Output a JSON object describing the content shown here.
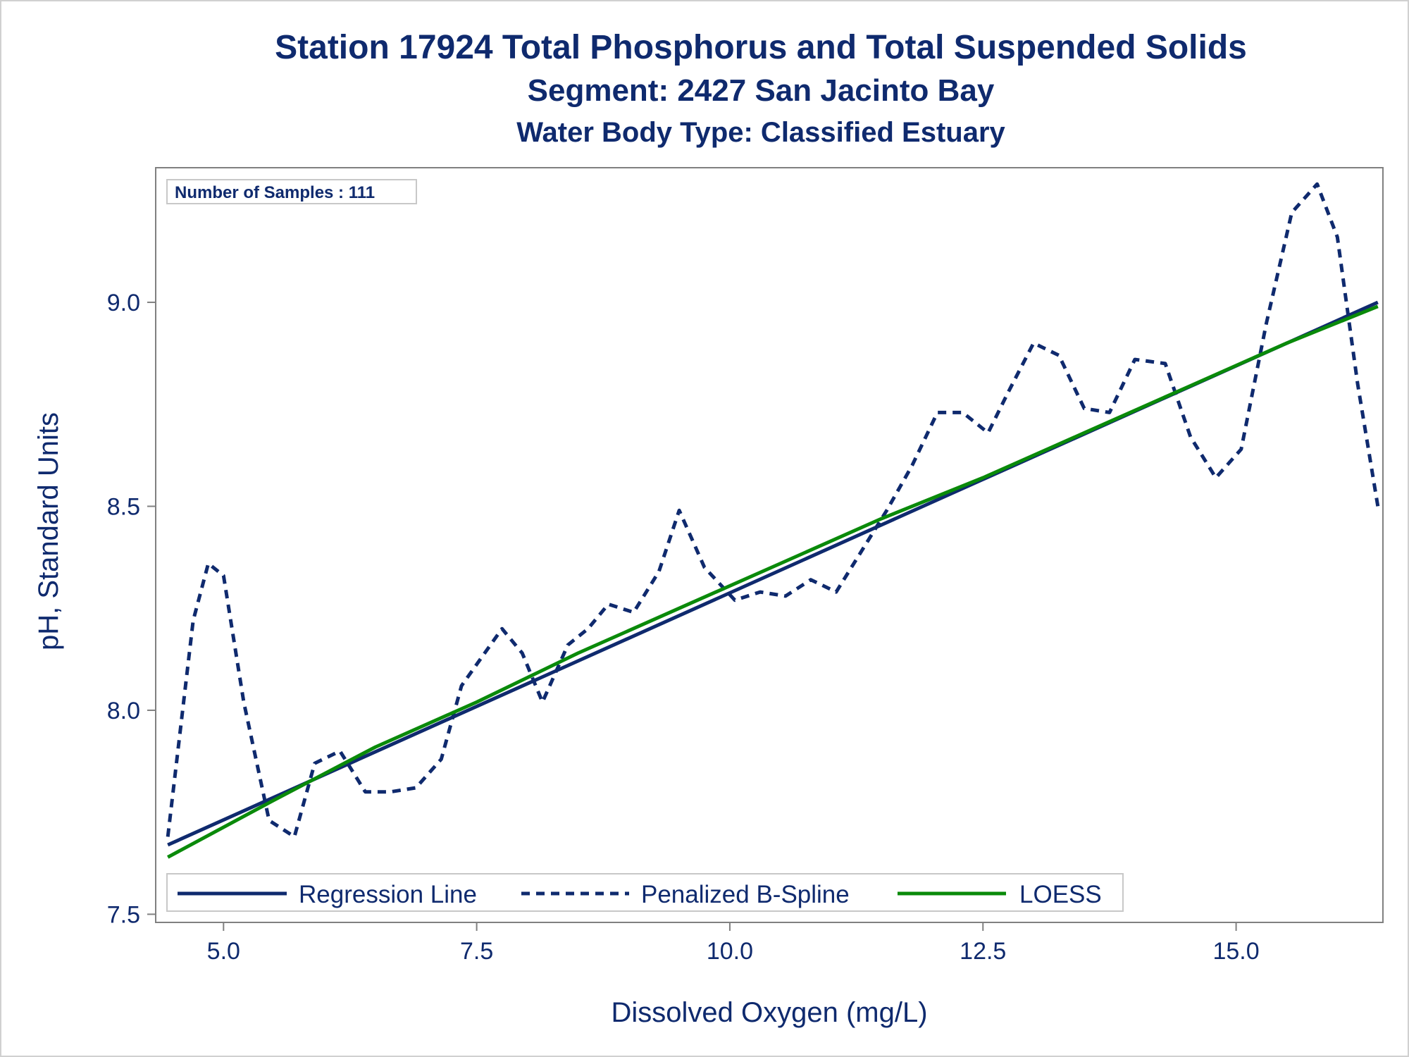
{
  "titles": {
    "main": "Station 17924  Total Phosphorus and Total Suspended Solids",
    "segment": "Segment: 2427  San Jacinto Bay",
    "water_body": "Water Body Type: Classified Estuary"
  },
  "inset": {
    "text": "Number of Samples : 111"
  },
  "colors": {
    "text": "#0f2a6e",
    "regression": "#0f2a6e",
    "spline": "#0f2a6e",
    "loess": "#0a8a0a",
    "axis": "#808080",
    "frame": "#d0d0d0"
  },
  "chart_data": {
    "type": "line",
    "xlabel": "Dissolved Oxygen (mg/L)",
    "ylabel": "pH, Standard Units",
    "xlim": [
      4.33,
      16.45
    ],
    "ylim": [
      7.48,
      9.33
    ],
    "xticks": [
      5.0,
      7.5,
      10.0,
      12.5,
      15.0
    ],
    "xtick_labels": [
      "5.0",
      "7.5",
      "10.0",
      "12.5",
      "15.0"
    ],
    "yticks": [
      7.5,
      8.0,
      8.5,
      9.0
    ],
    "ytick_labels": [
      "7.5",
      "8.0",
      "8.5",
      "9.0"
    ],
    "grid": false,
    "legend_position": "bottom-left inside",
    "series": [
      {
        "name": "Regression Line",
        "style": "solid",
        "x": [
          4.45,
          16.4
        ],
        "y": [
          7.67,
          9.0
        ]
      },
      {
        "name": "Penalized B-Spline",
        "style": "dashed",
        "x": [
          4.45,
          4.7,
          4.85,
          5.0,
          5.2,
          5.45,
          5.7,
          5.9,
          6.15,
          6.4,
          6.65,
          6.9,
          7.15,
          7.35,
          7.55,
          7.75,
          7.95,
          8.15,
          8.4,
          8.6,
          8.8,
          9.05,
          9.3,
          9.5,
          9.75,
          10.05,
          10.3,
          10.55,
          10.8,
          11.05,
          11.3,
          11.55,
          11.8,
          12.05,
          12.3,
          12.55,
          12.75,
          13.0,
          13.25,
          13.5,
          13.75,
          14.0,
          14.3,
          14.55,
          14.8,
          15.05,
          15.3,
          15.55,
          15.8,
          16.0,
          16.2,
          16.4
        ],
        "y": [
          7.69,
          8.22,
          8.36,
          8.33,
          8.02,
          7.73,
          7.69,
          7.87,
          7.9,
          7.8,
          7.8,
          7.81,
          7.88,
          8.06,
          8.13,
          8.2,
          8.14,
          8.02,
          8.16,
          8.2,
          8.26,
          8.24,
          8.34,
          8.49,
          8.35,
          8.27,
          8.29,
          8.28,
          8.32,
          8.29,
          8.39,
          8.49,
          8.6,
          8.73,
          8.73,
          8.68,
          8.78,
          8.9,
          8.87,
          8.74,
          8.73,
          8.86,
          8.85,
          8.67,
          8.57,
          8.64,
          8.95,
          9.22,
          9.29,
          9.16,
          8.8,
          8.5
        ]
      },
      {
        "name": "LOESS",
        "style": "solid",
        "x": [
          4.45,
          5.5,
          6.5,
          7.5,
          8.5,
          9.5,
          10.5,
          11.5,
          12.5,
          13.5,
          14.5,
          15.5,
          16.4
        ],
        "y": [
          7.64,
          7.78,
          7.91,
          8.02,
          8.14,
          8.25,
          8.36,
          8.47,
          8.57,
          8.68,
          8.79,
          8.9,
          8.99
        ]
      }
    ]
  }
}
